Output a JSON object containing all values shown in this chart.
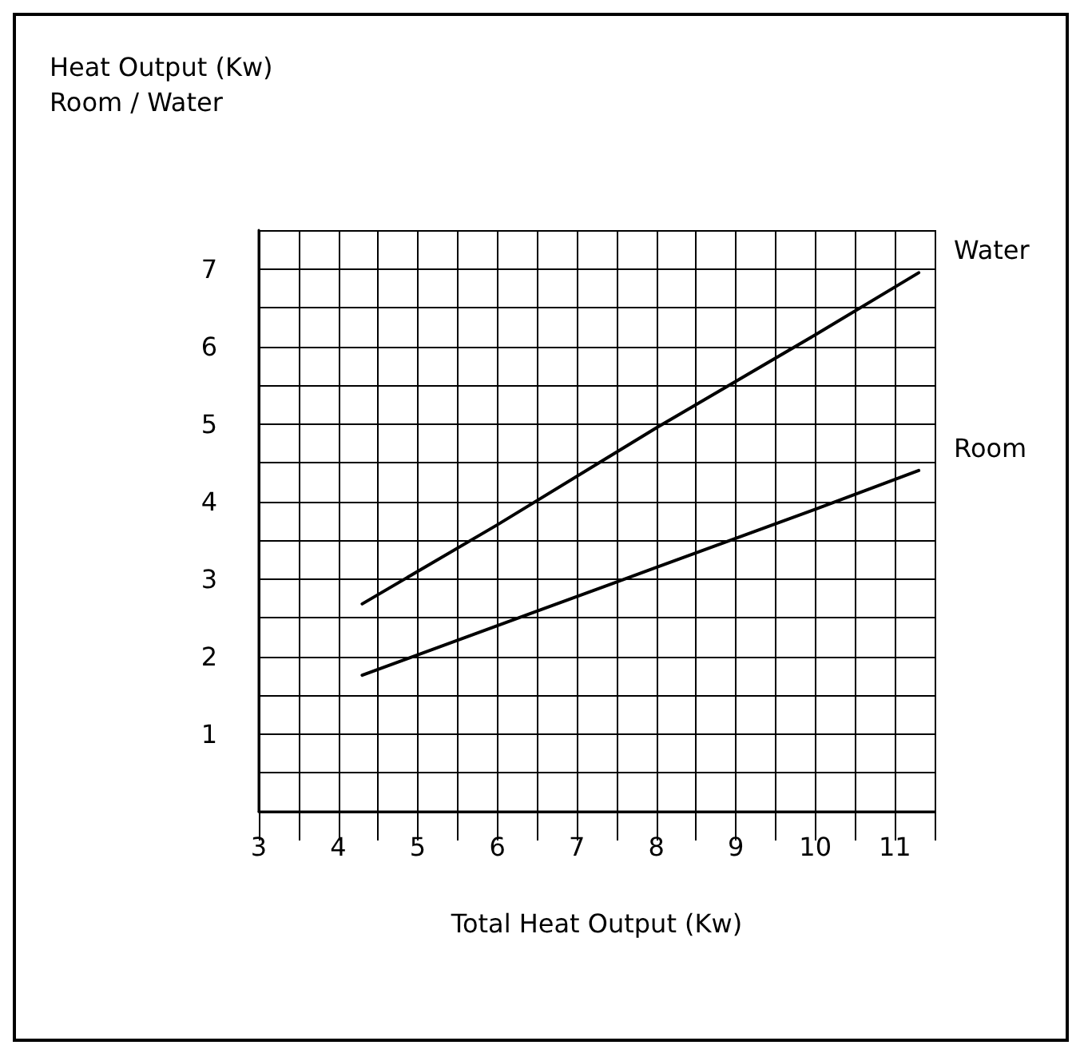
{
  "chart_data": {
    "type": "line",
    "ylabel": "Heat Output (Kw)\nRoom / Water",
    "xlabel": "Total Heat Output (Kw)",
    "xlim": [
      3,
      11.5
    ],
    "xticks": [
      3,
      {
        "value": 3.5,
        "label": null
      },
      4,
      {
        "value": 4.5,
        "label": null
      },
      5,
      {
        "value": 5.5,
        "label": null
      },
      6,
      {
        "value": 6.5,
        "label": null
      },
      7,
      {
        "value": 7.5,
        "label": null
      },
      8,
      {
        "value": 8.5,
        "label": null
      },
      9,
      {
        "value": 9.5,
        "label": null
      },
      10,
      {
        "value": 10.5,
        "label": null
      },
      11,
      {
        "value": 11.5,
        "label": null
      }
    ],
    "ylim": [
      0,
      7.5
    ],
    "yticks": [
      {
        "value": 0,
        "label": null
      },
      {
        "value": 0.5,
        "label": null
      },
      1,
      {
        "value": 1.5,
        "label": null
      },
      2,
      {
        "value": 2.5,
        "label": null
      },
      3,
      {
        "value": 3.5,
        "label": null
      },
      4,
      {
        "value": 4.5,
        "label": null
      },
      5,
      {
        "value": 5.5,
        "label": null
      },
      6,
      {
        "value": 6.5,
        "label": null
      },
      7,
      {
        "value": 7.5,
        "label": null
      }
    ],
    "series": [
      {
        "name": "Water",
        "color": "#000000",
        "x": [
          4.3,
          6,
          8,
          10,
          11.3
        ],
        "values": [
          2.68,
          3.7,
          4.95,
          6.15,
          6.95
        ]
      },
      {
        "name": "Room",
        "color": "#000000",
        "x": [
          4.3,
          6,
          8,
          10,
          11.3
        ],
        "values": [
          1.76,
          2.4,
          3.15,
          3.9,
          4.4
        ]
      }
    ],
    "grid": true,
    "legend": false,
    "marker": "none",
    "line_style": "solid"
  }
}
